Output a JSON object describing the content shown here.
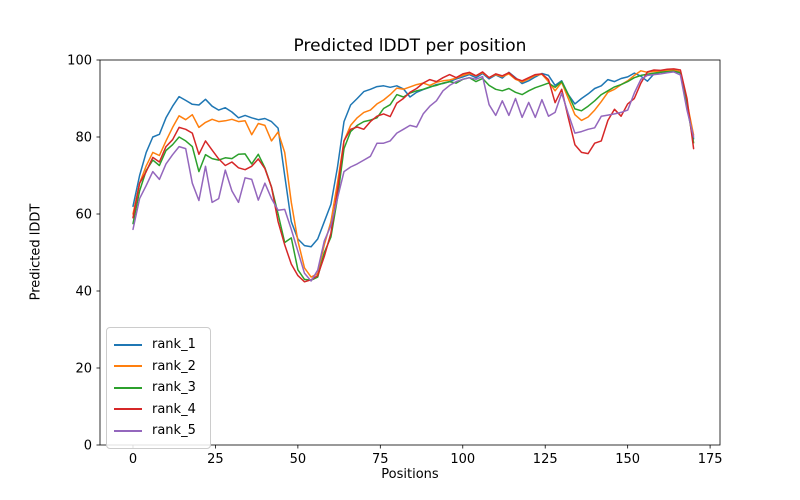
{
  "chart_data": {
    "type": "line",
    "title": "Predicted lDDT per position",
    "xlabel": "Positions",
    "ylabel": "Predicted lDDT",
    "xlim": [
      -10,
      178
    ],
    "ylim": [
      0,
      100
    ],
    "xticks": [
      0,
      25,
      50,
      75,
      100,
      125,
      150,
      175
    ],
    "yticks": [
      0,
      20,
      40,
      60,
      80,
      100
    ],
    "grid": false,
    "legend_position": "lower left",
    "line_width": 1.5,
    "x": [
      0,
      2,
      4,
      6,
      8,
      10,
      12,
      14,
      16,
      18,
      20,
      22,
      24,
      26,
      28,
      30,
      32,
      34,
      36,
      38,
      40,
      42,
      44,
      46,
      48,
      50,
      52,
      54,
      56,
      58,
      60,
      62,
      64,
      66,
      68,
      70,
      72,
      74,
      76,
      78,
      80,
      82,
      84,
      86,
      88,
      90,
      92,
      94,
      96,
      98,
      100,
      102,
      104,
      106,
      108,
      110,
      112,
      114,
      116,
      118,
      120,
      122,
      124,
      126,
      128,
      130,
      132,
      134,
      136,
      138,
      140,
      142,
      144,
      146,
      148,
      150,
      152,
      154,
      156,
      158,
      160,
      162,
      164,
      166,
      168,
      170
    ],
    "series": [
      {
        "name": "rank_1",
        "color": "#1f77b4",
        "values": [
          62,
          70,
          76,
          80,
          80.7,
          85,
          88,
          90.5,
          89.5,
          88.5,
          88.3,
          89.8,
          88,
          87,
          87.6,
          86.5,
          85,
          85.6,
          85,
          84.5,
          84.8,
          84,
          82.3,
          70,
          58,
          53.5,
          51.8,
          51.5,
          53.5,
          58,
          62.5,
          72,
          84,
          88.3,
          90,
          91.8,
          92.4,
          93.1,
          93.3,
          92.9,
          93.3,
          92.5,
          90.4,
          91.6,
          92.3,
          92.9,
          93.6,
          93.9,
          94.4,
          95.1,
          95.6,
          96.2,
          95.4,
          96.5,
          95.1,
          96.1,
          95.3,
          96.8,
          95.4,
          93.9,
          94.6,
          95.6,
          96.5,
          96,
          93.4,
          94.6,
          91,
          88.6,
          90,
          91.2,
          92.6,
          93.3,
          94.9,
          94.4,
          95.2,
          95.6,
          96.6,
          95.8,
          94.5,
          96.4,
          96.8,
          97,
          97.2,
          96.6,
          88,
          79.5
        ]
      },
      {
        "name": "rank_2",
        "color": "#ff7f0e",
        "values": [
          60,
          68,
          72.5,
          76,
          75.2,
          79,
          82.5,
          85.5,
          84.5,
          85.8,
          82.5,
          83.8,
          84.6,
          84,
          84.2,
          84.6,
          84,
          84.2,
          80.6,
          83.5,
          83,
          79,
          81.3,
          76,
          63,
          53,
          46,
          43.6,
          44.5,
          52,
          58,
          68,
          79,
          83,
          85,
          86.4,
          87,
          88.6,
          89.6,
          91,
          92.7,
          92.4,
          93,
          93.6,
          94,
          93.4,
          94.2,
          94.6,
          94.8,
          95.3,
          96,
          96.5,
          95.9,
          96.7,
          95.4,
          96.2,
          95.7,
          96.4,
          95,
          94.3,
          95.1,
          96,
          96.3,
          94.4,
          92,
          94.2,
          90,
          85.8,
          84.3,
          85.2,
          87,
          89.2,
          91.6,
          92.4,
          93.6,
          94.6,
          96,
          97.2,
          96.8,
          97.1,
          97,
          97.3,
          97.4,
          96.9,
          89,
          80.5
        ]
      },
      {
        "name": "rank_3",
        "color": "#2ca02c",
        "values": [
          57.5,
          66,
          71.3,
          74,
          72.6,
          76.5,
          78,
          80,
          79,
          77.5,
          71,
          75.4,
          74.4,
          74,
          74.6,
          74.4,
          75.5,
          75.6,
          73,
          75.5,
          72,
          67,
          60,
          52.6,
          53.8,
          45.5,
          43,
          42.8,
          43.6,
          50,
          54,
          64,
          77,
          81.4,
          83,
          84,
          84.4,
          85,
          87.4,
          88.4,
          91,
          90.4,
          91.4,
          92,
          92.4,
          93,
          93.4,
          94,
          94.4,
          94,
          95,
          95.4,
          94.4,
          95.2,
          93.4,
          92.4,
          92,
          92.6,
          91.6,
          91,
          92,
          92.8,
          93.4,
          94,
          92.9,
          94.4,
          91,
          87.3,
          86.8,
          88,
          89.4,
          91,
          92,
          93,
          93.6,
          94.4,
          95.4,
          96,
          96.3,
          96.6,
          96.8,
          97,
          97.1,
          96.7,
          88,
          78.5
        ]
      },
      {
        "name": "rank_4",
        "color": "#d62728",
        "values": [
          59,
          68,
          71,
          74.7,
          73.5,
          77.5,
          79.3,
          82.5,
          82,
          81,
          75.5,
          79,
          76.6,
          74.3,
          72.6,
          73.5,
          72,
          71.5,
          72.4,
          74.3,
          71.8,
          67,
          58,
          52,
          47,
          44,
          42.4,
          42.9,
          44,
          49,
          55,
          66,
          79,
          82,
          82.6,
          82,
          84,
          85.4,
          86,
          85.3,
          88.8,
          90,
          91.6,
          92.6,
          94,
          94.9,
          94.4,
          95.4,
          96.2,
          95.4,
          96.4,
          96.8,
          95.9,
          96.9,
          95.4,
          96.4,
          95.9,
          96.7,
          95.2,
          94.6,
          95.4,
          96.2,
          96.4,
          94.9,
          88.9,
          92.4,
          85,
          78,
          76,
          75.7,
          78.4,
          79,
          84.3,
          87.2,
          85.4,
          88.6,
          90,
          94,
          96.9,
          97.4,
          97.3,
          97.6,
          97.7,
          97.4,
          90,
          77
        ]
      },
      {
        "name": "rank_5",
        "color": "#9467bd",
        "values": [
          56,
          64,
          67.4,
          71,
          69,
          73,
          75.4,
          77.5,
          77,
          68,
          63.5,
          72.4,
          63,
          64,
          71.4,
          66,
          63,
          69.4,
          69,
          63.6,
          68,
          64,
          61,
          61.2,
          56,
          50.3,
          44.6,
          42.6,
          45.4,
          53,
          57,
          64,
          71,
          72.2,
          73,
          74,
          75,
          78.4,
          78.4,
          79,
          81,
          82,
          83,
          82.6,
          86,
          88,
          89.4,
          92,
          93.4,
          94.4,
          95,
          95.4,
          95,
          95.7,
          88.4,
          85.6,
          89.4,
          85.6,
          90,
          85.1,
          89,
          85.1,
          89.7,
          85.4,
          86.4,
          91.4,
          86,
          81,
          81.4,
          82,
          82.4,
          85.4,
          85.7,
          86,
          86.4,
          87,
          91.4,
          95,
          96,
          96.2,
          96.4,
          96.7,
          96.9,
          96.1,
          87,
          80
        ]
      }
    ]
  }
}
